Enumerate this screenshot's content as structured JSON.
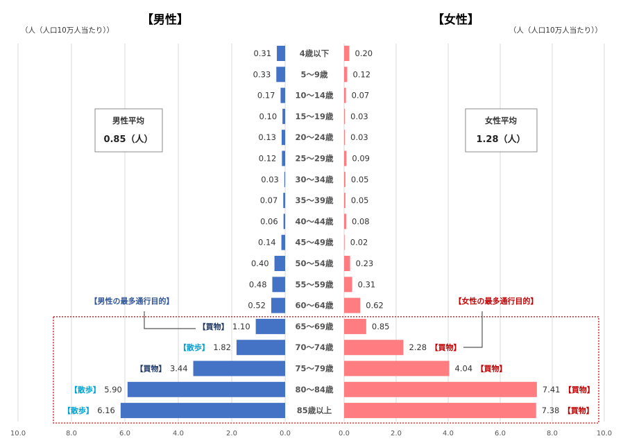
{
  "chart_data": {
    "type": "bar",
    "orientation": "horizontal-butterfly",
    "categories": [
      "4歳以下",
      "5～9歳",
      "10～14歳",
      "15～19歳",
      "20～24歳",
      "25～29歳",
      "30～34歳",
      "35～39歳",
      "40～44歳",
      "45～49歳",
      "50～54歳",
      "55～59歳",
      "60～64歳",
      "65～69歳",
      "70～74歳",
      "75～79歳",
      "80～84歳",
      "85歳以上"
    ],
    "series": [
      {
        "name": "【男性】",
        "side": "left",
        "color": "#4472C4",
        "values": [
          0.31,
          0.33,
          0.17,
          0.1,
          0.13,
          0.12,
          0.03,
          0.07,
          0.06,
          0.14,
          0.4,
          0.48,
          0.52,
          1.1,
          1.82,
          3.44,
          5.9,
          6.16
        ],
        "value_labels": [
          "0.31",
          "0.33",
          "0.17",
          "0.10",
          "0.13",
          "0.12",
          "0.03",
          "0.07",
          "0.06",
          "0.14",
          "0.40",
          "0.48",
          "0.52",
          "1.10",
          "1.82",
          "3.44",
          "5.90",
          "6.16"
        ],
        "unit": "（人（人口10万人当たり））",
        "average_label": "男性平均",
        "average_value": "0.85（人）",
        "purpose_title": "【男性の最多通行目的】",
        "purposes": [
          "",
          "",
          "",
          "",
          "",
          "",
          "",
          "",
          "",
          "",
          "",
          "",
          "",
          "【買物】",
          "【散歩】",
          "【買物】",
          "【散歩】",
          "【散歩】"
        ]
      },
      {
        "name": "【女性】",
        "side": "right",
        "color": "#FF7C80",
        "values": [
          0.2,
          0.12,
          0.07,
          0.03,
          0.03,
          0.09,
          0.05,
          0.05,
          0.08,
          0.02,
          0.23,
          0.31,
          0.62,
          0.85,
          2.28,
          4.04,
          7.41,
          7.38
        ],
        "value_labels": [
          "0.20",
          "0.12",
          "0.07",
          "0.03",
          "0.03",
          "0.09",
          "0.05",
          "0.05",
          "0.08",
          "0.02",
          "0.23",
          "0.31",
          "0.62",
          "0.85",
          "2.28",
          "4.04",
          "7.41",
          "7.38"
        ],
        "unit": "（人（人口10万人当たり））",
        "average_label": "女性平均",
        "average_value": "1.28（人）",
        "purpose_title": "【女性の最多通行目的】",
        "purposes": [
          "",
          "",
          "",
          "",
          "",
          "",
          "",
          "",
          "",
          "",
          "",
          "",
          "",
          "",
          "【買物】",
          "【買物】",
          "【買物】",
          "【買物】"
        ]
      }
    ],
    "xlim": [
      0,
      10
    ],
    "x_ticks": [
      "0.0",
      "2.0",
      "4.0",
      "6.0",
      "8.0",
      "10.0"
    ],
    "grid": true,
    "colors": {
      "male_title": "#2F5597",
      "female_title": "#FF6B70",
      "purpose_walk": "#00A0D2",
      "purpose_shop_male": "#1F3864",
      "purpose_shop_female": "#C00000",
      "highlight_box": "#C00000"
    }
  }
}
